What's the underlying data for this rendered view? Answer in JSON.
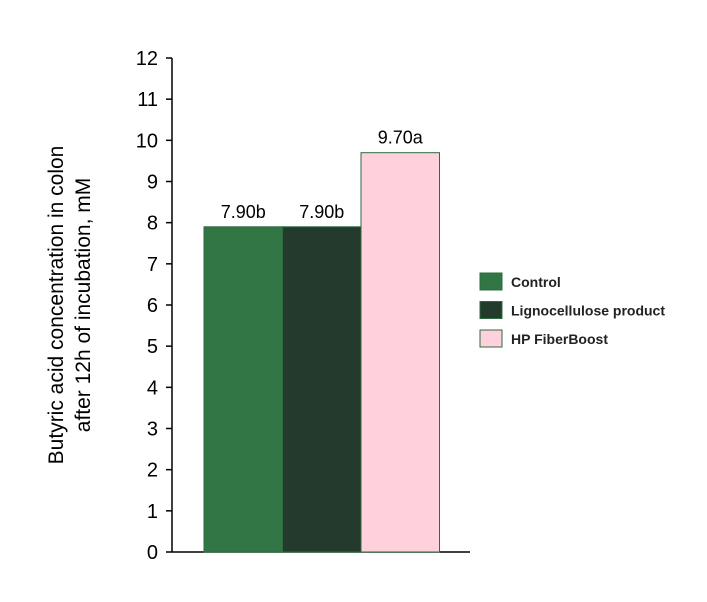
{
  "chart_data": {
    "type": "bar",
    "ylabel_line1": "Butyric acid concentration in colon",
    "ylabel_line2": "after 12h of incubation, mM",
    "ylim": [
      0,
      12
    ],
    "yticks": [
      "0",
      "1",
      "2",
      "3",
      "4",
      "5",
      "6",
      "7",
      "8",
      "9",
      "10",
      "11",
      "12"
    ],
    "grid": false,
    "legend_position": "right",
    "series": [
      {
        "name": "Control",
        "value": 7.9,
        "label": "7.90b",
        "color": "#327646"
      },
      {
        "name": "Lignocellulose product",
        "value": 7.9,
        "label": "7.90b",
        "color": "#233a2c"
      },
      {
        "name": "HP FiberBoost",
        "value": 9.7,
        "label": "9.70a",
        "color": "#ffd1dc"
      }
    ],
    "bar_outline_color": "#2e6b3e"
  }
}
